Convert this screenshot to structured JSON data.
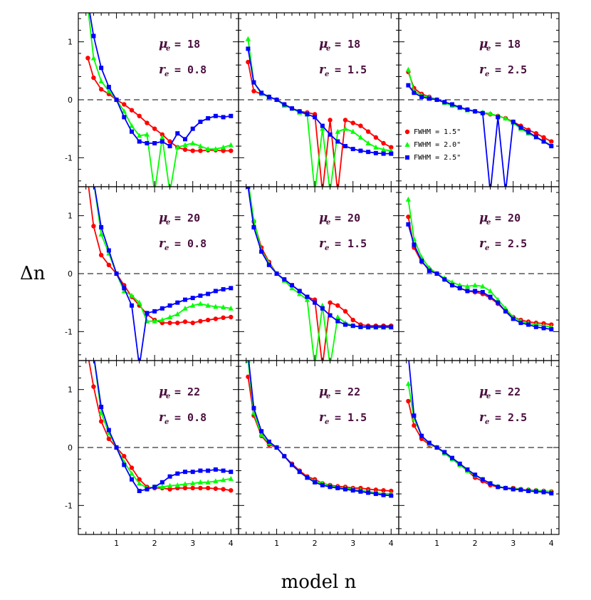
{
  "chart_data": {
    "type": "line",
    "xlabel": "model n",
    "ylabel": "Δn",
    "xlim": [
      0,
      4.2
    ],
    "ylim": [
      -1.5,
      1.5
    ],
    "xticks": [
      "1",
      "2",
      "3",
      "4"
    ],
    "yticks": [
      "1",
      "0",
      "-1"
    ],
    "legend": {
      "position": "top-right panel, lower-left",
      "entries": [
        {
          "label": "FWHM = 1.5\"",
          "color": "#ff0000",
          "marker": "circle"
        },
        {
          "label": "FWHM = 2.0\"",
          "color": "#00ff00",
          "marker": "triangle"
        },
        {
          "label": "FWHM = 2.5\"",
          "color": "#0000ff",
          "marker": "square"
        }
      ]
    },
    "x": [
      0.25,
      0.4,
      0.6,
      0.8,
      1.0,
      1.2,
      1.4,
      1.6,
      1.8,
      2.0,
      2.2,
      2.4,
      2.6,
      2.8,
      3.0,
      3.2,
      3.4,
      3.6,
      3.8,
      4.0
    ],
    "panels": [
      {
        "mu_label": "μ",
        "mu_sub": "e",
        "mu_value": "= 18",
        "r_label": "r",
        "r_sub": "e",
        "r_value": "= 0.8",
        "series": [
          {
            "name": "FWHM = 1.5\"",
            "values": [
              0.72,
              0.38,
              0.18,
              0.1,
              0.0,
              -0.08,
              -0.18,
              -0.28,
              -0.4,
              -0.5,
              -0.6,
              -0.72,
              -0.82,
              -0.86,
              -0.88,
              -0.88,
              -0.87,
              -0.87,
              -0.88,
              -0.88
            ]
          },
          {
            "name": "FWHM = 2.0\"",
            "values": [
              1.6,
              0.72,
              0.32,
              0.15,
              0.0,
              -0.2,
              -0.45,
              -0.62,
              -0.6,
              -1.6,
              -0.65,
              -1.6,
              -0.82,
              -0.78,
              -0.75,
              -0.8,
              -0.85,
              -0.85,
              -0.82,
              -0.78
            ]
          },
          {
            "name": "FWHM = 2.5\"",
            "values": [
              1.7,
              1.1,
              0.55,
              0.22,
              0.0,
              -0.3,
              -0.55,
              -0.72,
              -0.75,
              -0.75,
              -0.72,
              -0.8,
              -0.58,
              -0.68,
              -0.5,
              -0.38,
              -0.32,
              -0.28,
              -0.3,
              -0.28
            ]
          }
        ]
      },
      {
        "mu_label": "μ",
        "mu_sub": "e",
        "mu_value": "= 18",
        "r_label": "r",
        "r_sub": "e",
        "r_value": "= 1.5",
        "series": [
          {
            "name": "FWHM = 1.5\"",
            "values": [
              0.65,
              0.15,
              0.1,
              0.05,
              0.0,
              -0.08,
              -0.15,
              -0.2,
              -0.22,
              -0.25,
              -1.6,
              -0.35,
              -1.6,
              -0.35,
              -0.4,
              -0.45,
              -0.55,
              -0.65,
              -0.75,
              -0.82
            ]
          },
          {
            "name": "FWHM = 2.0\"",
            "values": [
              1.05,
              0.3,
              0.1,
              0.05,
              0.0,
              -0.1,
              -0.15,
              -0.22,
              -0.25,
              -1.6,
              -0.5,
              -1.6,
              -0.55,
              -0.5,
              -0.55,
              -0.65,
              -0.75,
              -0.82,
              -0.86,
              -0.88
            ]
          },
          {
            "name": "FWHM = 2.5\"",
            "values": [
              0.88,
              0.3,
              0.12,
              0.05,
              0.0,
              -0.08,
              -0.15,
              -0.2,
              -0.25,
              -0.3,
              -0.45,
              -0.6,
              -0.72,
              -0.8,
              -0.85,
              -0.88,
              -0.9,
              -0.92,
              -0.93,
              -0.93
            ]
          }
        ]
      },
      {
        "mu_label": "μ",
        "mu_sub": "e",
        "mu_value": "= 18",
        "r_label": "r",
        "r_sub": "e",
        "r_value": "= 2.5",
        "series": [
          {
            "name": "FWHM = 1.5\"",
            "values": [
              0.48,
              0.2,
              0.1,
              0.05,
              0.0,
              -0.05,
              -0.1,
              -0.13,
              -0.17,
              -0.2,
              -0.23,
              -0.25,
              -0.28,
              -0.32,
              -0.38,
              -0.45,
              -0.52,
              -0.58,
              -0.65,
              -0.72
            ]
          },
          {
            "name": "FWHM = 2.0\"",
            "values": [
              0.52,
              0.15,
              0.08,
              0.04,
              0.0,
              -0.05,
              -0.1,
              -0.14,
              -0.18,
              -0.2,
              -0.22,
              -0.24,
              -0.28,
              -0.32,
              -0.4,
              -0.5,
              -0.58,
              -0.65,
              -0.72,
              -0.78
            ]
          },
          {
            "name": "FWHM = 2.5\"",
            "values": [
              0.25,
              0.12,
              0.05,
              0.02,
              0.0,
              -0.04,
              -0.08,
              -0.13,
              -0.17,
              -0.2,
              -0.23,
              -1.6,
              -0.3,
              -1.6,
              -0.38,
              -0.48,
              -0.56,
              -0.64,
              -0.72,
              -0.8
            ]
          }
        ]
      },
      {
        "mu_label": "μ",
        "mu_sub": "e",
        "mu_value": "= 20",
        "r_label": "r",
        "r_sub": "e",
        "r_value": "= 0.8",
        "series": [
          {
            "name": "FWHM = 1.5\"",
            "values": [
              1.6,
              0.82,
              0.32,
              0.15,
              0.0,
              -0.2,
              -0.4,
              -0.55,
              -0.7,
              -0.8,
              -0.85,
              -0.85,
              -0.85,
              -0.83,
              -0.85,
              -0.82,
              -0.8,
              -0.78,
              -0.76,
              -0.75
            ]
          },
          {
            "name": "FWHM = 2.0\"",
            "values": [
              1.6,
              1.6,
              0.68,
              0.35,
              0.0,
              -0.3,
              -0.38,
              -0.5,
              -0.82,
              -0.82,
              -0.8,
              -0.75,
              -0.7,
              -0.6,
              -0.55,
              -0.52,
              -0.55,
              -0.57,
              -0.58,
              -0.6
            ]
          },
          {
            "name": "FWHM = 2.5\"",
            "values": [
              1.6,
              1.6,
              0.8,
              0.4,
              0.0,
              -0.25,
              -0.55,
              -1.6,
              -0.68,
              -0.65,
              -0.6,
              -0.55,
              -0.5,
              -0.45,
              -0.42,
              -0.38,
              -0.35,
              -0.3,
              -0.27,
              -0.25
            ]
          }
        ]
      },
      {
        "mu_label": "μ",
        "mu_sub": "e",
        "mu_value": "= 20",
        "r_label": "r",
        "r_sub": "e",
        "r_value": "= 1.5",
        "series": [
          {
            "name": "FWHM = 1.5\"",
            "values": [
              1.6,
              0.9,
              0.45,
              0.2,
              0.0,
              -0.1,
              -0.2,
              -0.3,
              -0.4,
              -0.45,
              -1.6,
              -0.5,
              -0.55,
              -0.65,
              -0.8,
              -0.88,
              -0.9,
              -0.9,
              -0.9,
              -0.9
            ]
          },
          {
            "name": "FWHM = 2.0\"",
            "values": [
              1.6,
              0.92,
              0.4,
              0.18,
              0.0,
              -0.12,
              -0.25,
              -0.35,
              -0.45,
              -1.6,
              -0.55,
              -1.6,
              -0.75,
              -0.85,
              -0.9,
              -0.92,
              -0.93,
              -0.93,
              -0.93,
              -0.93
            ]
          },
          {
            "name": "FWHM = 2.5\"",
            "values": [
              1.5,
              0.8,
              0.38,
              0.15,
              0.0,
              -0.1,
              -0.2,
              -0.3,
              -0.4,
              -0.5,
              -0.6,
              -0.72,
              -0.82,
              -0.88,
              -0.9,
              -0.92,
              -0.92,
              -0.92,
              -0.92,
              -0.92
            ]
          }
        ]
      },
      {
        "mu_label": "μ",
        "mu_sub": "e",
        "mu_value": "= 20",
        "r_label": "r",
        "r_sub": "e",
        "r_value": "= 2.5",
        "series": [
          {
            "name": "FWHM = 1.5\"",
            "values": [
              0.98,
              0.45,
              0.2,
              0.08,
              0.0,
              -0.1,
              -0.2,
              -0.25,
              -0.3,
              -0.32,
              -0.35,
              -0.42,
              -0.52,
              -0.65,
              -0.75,
              -0.8,
              -0.83,
              -0.85,
              -0.86,
              -0.88
            ]
          },
          {
            "name": "FWHM = 2.0\"",
            "values": [
              1.28,
              0.6,
              0.28,
              0.1,
              0.0,
              -0.08,
              -0.15,
              -0.2,
              -0.22,
              -0.2,
              -0.22,
              -0.3,
              -0.45,
              -0.6,
              -0.75,
              -0.82,
              -0.86,
              -0.88,
              -0.9,
              -0.92
            ]
          },
          {
            "name": "FWHM = 2.5\"",
            "values": [
              0.85,
              0.5,
              0.22,
              0.05,
              0.0,
              -0.1,
              -0.2,
              -0.25,
              -0.3,
              -0.3,
              -0.32,
              -0.4,
              -0.5,
              -0.65,
              -0.78,
              -0.85,
              -0.88,
              -0.92,
              -0.94,
              -0.96
            ]
          }
        ]
      },
      {
        "mu_label": "μ",
        "mu_sub": "e",
        "mu_value": "= 22",
        "r_label": "r",
        "r_sub": "e",
        "r_value": "= 0.8",
        "series": [
          {
            "name": "FWHM = 1.5\"",
            "values": [
              1.6,
              1.05,
              0.45,
              0.15,
              0.0,
              -0.15,
              -0.35,
              -0.55,
              -0.68,
              -0.7,
              -0.7,
              -0.72,
              -0.7,
              -0.7,
              -0.7,
              -0.7,
              -0.7,
              -0.71,
              -0.72,
              -0.74
            ]
          },
          {
            "name": "FWHM = 2.0\"",
            "values": [
              1.6,
              1.6,
              0.6,
              0.25,
              0.0,
              -0.25,
              -0.45,
              -0.62,
              -0.7,
              -0.68,
              -0.68,
              -0.66,
              -0.65,
              -0.63,
              -0.62,
              -0.6,
              -0.6,
              -0.58,
              -0.56,
              -0.54
            ]
          },
          {
            "name": "FWHM = 2.5\"",
            "values": [
              1.6,
              1.6,
              0.7,
              0.3,
              0.0,
              -0.3,
              -0.55,
              -0.75,
              -0.72,
              -0.68,
              -0.6,
              -0.5,
              -0.45,
              -0.42,
              -0.42,
              -0.4,
              -0.4,
              -0.38,
              -0.4,
              -0.42
            ]
          }
        ]
      },
      {
        "mu_label": "μ",
        "mu_sub": "e",
        "mu_value": "= 22",
        "r_label": "r",
        "r_sub": "e",
        "r_value": "= 1.5",
        "series": [
          {
            "name": "FWHM = 1.5\"",
            "values": [
              1.22,
              0.55,
              0.2,
              0.05,
              0.0,
              -0.15,
              -0.28,
              -0.4,
              -0.5,
              -0.55,
              -0.62,
              -0.65,
              -0.67,
              -0.68,
              -0.7,
              -0.7,
              -0.72,
              -0.73,
              -0.74,
              -0.75
            ]
          },
          {
            "name": "FWHM = 2.0\"",
            "values": [
              1.5,
              0.6,
              0.22,
              0.08,
              0.0,
              -0.15,
              -0.3,
              -0.42,
              -0.52,
              -0.58,
              -0.62,
              -0.66,
              -0.69,
              -0.7,
              -0.72,
              -0.74,
              -0.76,
              -0.78,
              -0.8,
              -0.8
            ]
          },
          {
            "name": "FWHM = 2.5\"",
            "values": [
              1.6,
              0.68,
              0.28,
              0.1,
              0.0,
              -0.15,
              -0.3,
              -0.42,
              -0.52,
              -0.6,
              -0.65,
              -0.68,
              -0.7,
              -0.72,
              -0.74,
              -0.76,
              -0.78,
              -0.8,
              -0.82,
              -0.83
            ]
          }
        ]
      },
      {
        "mu_label": "μ",
        "mu_sub": "e",
        "mu_value": "= 22",
        "r_label": "r",
        "r_sub": "e",
        "r_value": "= 2.5",
        "series": [
          {
            "name": "FWHM = 1.5\"",
            "values": [
              0.8,
              0.38,
              0.15,
              0.05,
              0.0,
              -0.1,
              -0.2,
              -0.3,
              -0.4,
              -0.52,
              -0.58,
              -0.65,
              -0.68,
              -0.7,
              -0.7,
              -0.72,
              -0.73,
              -0.74,
              -0.75,
              -0.76
            ]
          },
          {
            "name": "FWHM = 2.0\"",
            "values": [
              1.1,
              0.5,
              0.2,
              0.06,
              0.0,
              -0.1,
              -0.2,
              -0.3,
              -0.4,
              -0.48,
              -0.55,
              -0.62,
              -0.67,
              -0.7,
              -0.71,
              -0.72,
              -0.73,
              -0.74,
              -0.75,
              -0.76
            ]
          },
          {
            "name": "FWHM = 2.5\"",
            "values": [
              1.6,
              0.55,
              0.2,
              0.08,
              0.0,
              -0.08,
              -0.18,
              -0.28,
              -0.38,
              -0.47,
              -0.55,
              -0.62,
              -0.68,
              -0.7,
              -0.72,
              -0.73,
              -0.75,
              -0.76,
              -0.77,
              -0.79
            ]
          }
        ]
      }
    ]
  }
}
